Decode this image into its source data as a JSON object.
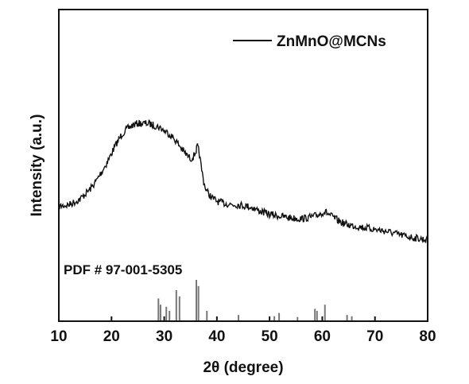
{
  "chart_data": {
    "type": "line",
    "xlabel": "2θ (degree)",
    "ylabel": "Intensity (a.u.)",
    "xlim": [
      10,
      80
    ],
    "xticks": [
      10,
      20,
      30,
      40,
      50,
      60,
      70,
      80
    ],
    "y_ticks_shown": false,
    "grid": false,
    "legend_position": "top-right",
    "series": [
      {
        "name": "ZnMnO@MCNs",
        "color": "#111111",
        "x": [
          10,
          12,
          14,
          16,
          17,
          18,
          19,
          20,
          21,
          22,
          23,
          24,
          25,
          26,
          27,
          28,
          29,
          30,
          31,
          32,
          33,
          34,
          35,
          35.5,
          36,
          36.3,
          36.6,
          37,
          37.5,
          38,
          39,
          40,
          41,
          42,
          43,
          44,
          45,
          46,
          47,
          48,
          50,
          52,
          54,
          56,
          58,
          59,
          60,
          60.5,
          61,
          62,
          63,
          64,
          65,
          66,
          68,
          70,
          72,
          74,
          76,
          78,
          80
        ],
        "y": [
          0.38,
          0.39,
          0.42,
          0.48,
          0.52,
          0.57,
          0.62,
          0.68,
          0.74,
          0.79,
          0.82,
          0.84,
          0.85,
          0.85,
          0.85,
          0.84,
          0.83,
          0.81,
          0.79,
          0.76,
          0.72,
          0.68,
          0.65,
          0.66,
          0.69,
          0.72,
          0.69,
          0.61,
          0.52,
          0.47,
          0.43,
          0.41,
          0.4,
          0.395,
          0.39,
          0.39,
          0.385,
          0.38,
          0.37,
          0.355,
          0.335,
          0.325,
          0.315,
          0.31,
          0.32,
          0.33,
          0.345,
          0.35,
          0.34,
          0.32,
          0.3,
          0.285,
          0.275,
          0.27,
          0.26,
          0.25,
          0.24,
          0.225,
          0.21,
          0.2,
          0.19
        ]
      }
    ],
    "reference": {
      "label": "PDF # 97-001-5305",
      "color": "#777777",
      "peaks": [
        {
          "x": 28.9,
          "h": 0.55
        },
        {
          "x": 29.3,
          "h": 0.4
        },
        {
          "x": 30.4,
          "h": 0.35
        },
        {
          "x": 31.0,
          "h": 0.25
        },
        {
          "x": 32.3,
          "h": 0.75
        },
        {
          "x": 32.9,
          "h": 0.6
        },
        {
          "x": 36.1,
          "h": 1.0
        },
        {
          "x": 36.5,
          "h": 0.85
        },
        {
          "x": 38.1,
          "h": 0.25
        },
        {
          "x": 44.1,
          "h": 0.15
        },
        {
          "x": 50.9,
          "h": 0.12
        },
        {
          "x": 51.8,
          "h": 0.2
        },
        {
          "x": 55.3,
          "h": 0.1
        },
        {
          "x": 58.6,
          "h": 0.3
        },
        {
          "x": 59.0,
          "h": 0.25
        },
        {
          "x": 60.5,
          "h": 0.4
        },
        {
          "x": 64.7,
          "h": 0.15
        },
        {
          "x": 65.6,
          "h": 0.12
        }
      ]
    }
  }
}
